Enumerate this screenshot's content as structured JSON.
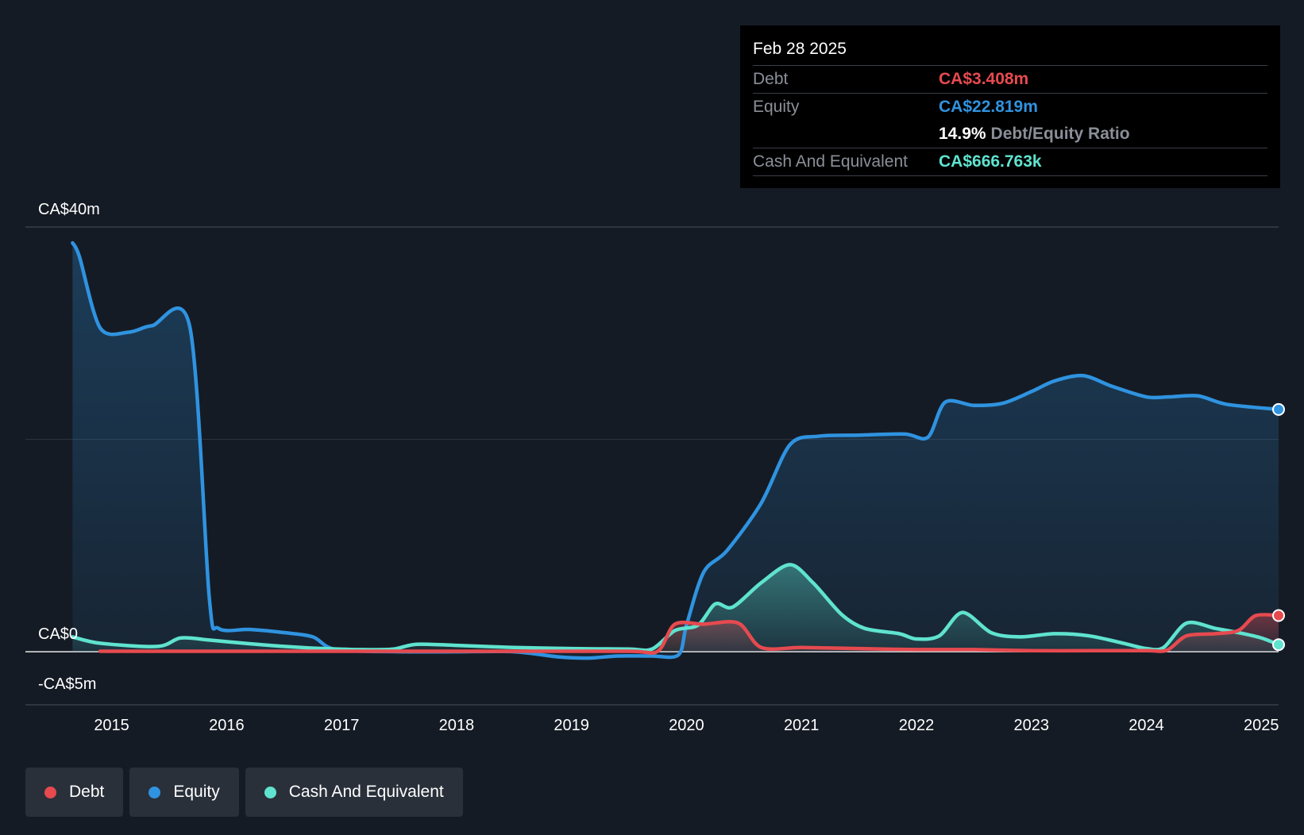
{
  "tooltip": {
    "date": "Feb 28 2025",
    "debt_label": "Debt",
    "debt_value": "CA$3.408m",
    "equity_label": "Equity",
    "equity_value": "CA$22.819m",
    "ratio_value": "14.9%",
    "ratio_label": "Debt/Equity Ratio",
    "cash_label": "Cash And Equivalent",
    "cash_value": "CA$666.763k"
  },
  "legend": [
    {
      "label": "Debt",
      "color": "#e64a4f"
    },
    {
      "label": "Equity",
      "color": "#2f93e0"
    },
    {
      "label": "Cash And Equivalent",
      "color": "#5fe3cf"
    }
  ],
  "colors": {
    "debt": "#e64a4f",
    "equity": "#2f93e0",
    "cash": "#5fe3cf",
    "background": "#151b24"
  },
  "chart_data": {
    "type": "line",
    "title": "",
    "xlabel": "",
    "ylabel": "",
    "ylim": [
      -5,
      40
    ],
    "y_tick_labels": [
      "CA$40m",
      "CA$0",
      "-CA$5m"
    ],
    "y_tick_values": [
      40,
      0,
      -5
    ],
    "x_tick_labels": [
      "2015",
      "2016",
      "2017",
      "2018",
      "2019",
      "2020",
      "2021",
      "2022",
      "2023",
      "2024",
      "2025"
    ],
    "x_tick_values": [
      2015,
      2016,
      2017,
      2018,
      2019,
      2020,
      2021,
      2022,
      2023,
      2024,
      2025
    ],
    "xlim": [
      2014.25,
      2025.15
    ],
    "series": [
      {
        "name": "Debt",
        "x": [
          2014.9,
          2015.5,
          2016.5,
          2017.5,
          2018.5,
          2019.5,
          2019.75,
          2019.9,
          2020.15,
          2020.45,
          2020.65,
          2021.0,
          2021.5,
          2022.0,
          2022.5,
          2023.0,
          2023.5,
          2024.0,
          2024.18,
          2024.35,
          2024.6,
          2024.8,
          2024.95,
          2025.15
        ],
        "values": [
          0.05,
          0.05,
          0.05,
          0.05,
          0.05,
          0.05,
          0.05,
          2.6,
          2.6,
          2.7,
          0.4,
          0.4,
          0.3,
          0.2,
          0.2,
          0.1,
          0.1,
          0.1,
          0.15,
          1.5,
          1.7,
          2.0,
          3.4,
          3.408
        ]
      },
      {
        "name": "Equity",
        "x": [
          2014.66,
          2014.72,
          2014.9,
          2015.15,
          2015.35,
          2015.68,
          2015.85,
          2015.93,
          2016.2,
          2016.5,
          2016.75,
          2016.95,
          2017.5,
          2018.0,
          2018.5,
          2018.9,
          2019.15,
          2019.4,
          2019.7,
          2019.93,
          2020.0,
          2020.15,
          2020.35,
          2020.65,
          2020.9,
          2021.15,
          2021.5,
          2021.9,
          2022.1,
          2022.25,
          2022.5,
          2022.75,
          2023.0,
          2023.2,
          2023.45,
          2023.7,
          2024.0,
          2024.2,
          2024.45,
          2024.7,
          2025.15
        ],
        "values": [
          38.5,
          37.2,
          30.5,
          30.1,
          30.7,
          30.6,
          5.0,
          2.2,
          2.1,
          1.8,
          1.4,
          0.2,
          0.0,
          0.0,
          0.0,
          -0.5,
          -0.6,
          -0.4,
          -0.4,
          -0.3,
          2.5,
          7.5,
          9.5,
          14.0,
          19.5,
          20.3,
          20.4,
          20.5,
          20.2,
          23.5,
          23.2,
          23.4,
          24.5,
          25.5,
          26.0,
          25.0,
          24.0,
          24.0,
          24.1,
          23.3,
          22.819
        ]
      },
      {
        "name": "Cash And Equivalent",
        "x": [
          2014.66,
          2014.9,
          2015.4,
          2015.6,
          2015.85,
          2016.15,
          2016.5,
          2016.85,
          2017.2,
          2017.45,
          2017.65,
          2018.0,
          2018.5,
          2019.0,
          2019.5,
          2019.7,
          2019.9,
          2020.1,
          2020.25,
          2020.4,
          2020.65,
          2020.9,
          2021.1,
          2021.35,
          2021.55,
          2021.85,
          2022.0,
          2022.2,
          2022.4,
          2022.65,
          2022.9,
          2023.2,
          2023.5,
          2023.8,
          2024.0,
          2024.15,
          2024.35,
          2024.6,
          2024.8,
          2025.0,
          2025.15
        ],
        "values": [
          1.4,
          0.8,
          0.5,
          1.3,
          1.1,
          0.8,
          0.5,
          0.3,
          0.2,
          0.25,
          0.7,
          0.6,
          0.4,
          0.3,
          0.25,
          0.25,
          2.0,
          2.5,
          4.5,
          4.2,
          6.5,
          8.2,
          6.5,
          3.5,
          2.2,
          1.7,
          1.2,
          1.5,
          3.7,
          1.8,
          1.4,
          1.7,
          1.5,
          0.8,
          0.3,
          0.4,
          2.7,
          2.2,
          1.8,
          1.3,
          0.667
        ]
      }
    ]
  }
}
